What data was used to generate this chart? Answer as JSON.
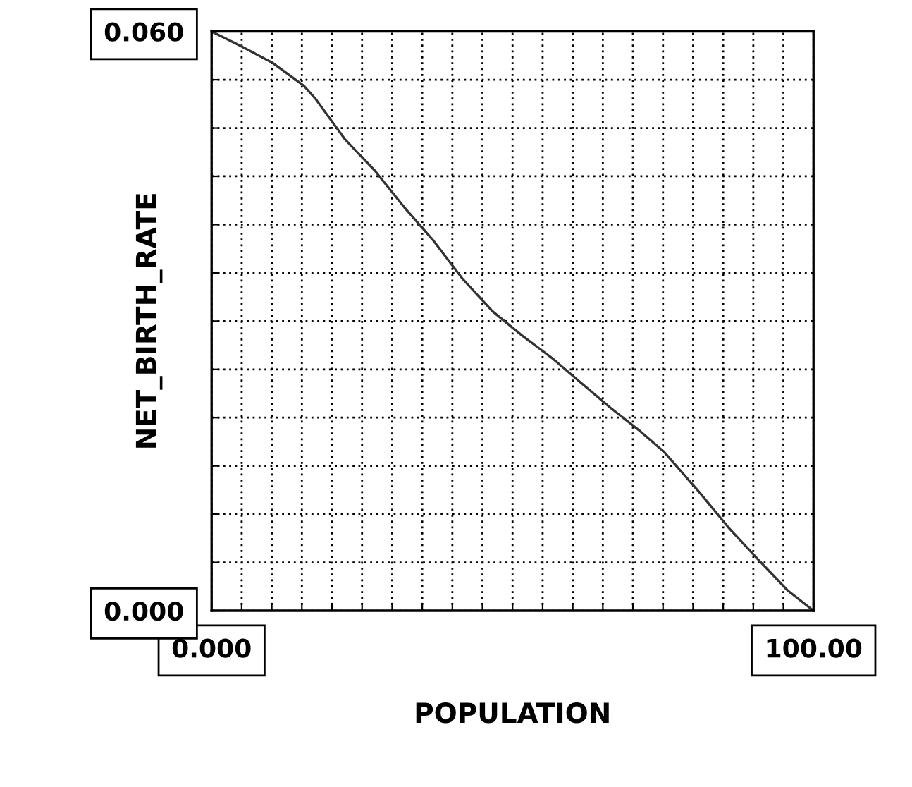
{
  "chart_data": {
    "type": "line",
    "xlabel": "POPULATION",
    "ylabel": "NET_BIRTH_RATE",
    "xlim": [
      0,
      100
    ],
    "ylim": [
      0,
      0.06
    ],
    "xticks": [
      {
        "value": 0,
        "label": "0.000"
      },
      {
        "value": 5,
        "label": null
      },
      {
        "value": 10,
        "label": null
      },
      {
        "value": 15,
        "label": null
      },
      {
        "value": 20,
        "label": null
      },
      {
        "value": 25,
        "label": null
      },
      {
        "value": 30,
        "label": null
      },
      {
        "value": 35,
        "label": null
      },
      {
        "value": 40,
        "label": null
      },
      {
        "value": 45,
        "label": null
      },
      {
        "value": 50,
        "label": null
      },
      {
        "value": 55,
        "label": null
      },
      {
        "value": 60,
        "label": null
      },
      {
        "value": 65,
        "label": null
      },
      {
        "value": 70,
        "label": null
      },
      {
        "value": 75,
        "label": null
      },
      {
        "value": 80,
        "label": null
      },
      {
        "value": 85,
        "label": null
      },
      {
        "value": 90,
        "label": null
      },
      {
        "value": 95,
        "label": null
      },
      {
        "value": 100,
        "label": "100.00"
      }
    ],
    "yticks": [
      {
        "value": 0,
        "label": "0.000"
      },
      {
        "value": 0.005,
        "label": null
      },
      {
        "value": 0.01,
        "label": null
      },
      {
        "value": 0.015,
        "label": null
      },
      {
        "value": 0.02,
        "label": null
      },
      {
        "value": 0.025,
        "label": null
      },
      {
        "value": 0.03,
        "label": null
      },
      {
        "value": 0.035,
        "label": null
      },
      {
        "value": 0.04,
        "label": null
      },
      {
        "value": 0.045,
        "label": null
      },
      {
        "value": 0.05,
        "label": null
      },
      {
        "value": 0.055,
        "label": null
      },
      {
        "value": 0.06,
        "label": "0.060"
      }
    ],
    "grid": true,
    "marker": "none",
    "line_style": "solid",
    "series": [
      {
        "color": "#333333",
        "x": [
          0,
          4.5,
          10,
          15.3,
          17.3,
          22.2,
          27.1,
          32,
          36.9,
          41.8,
          46.7,
          51.6,
          56.5,
          61.4,
          66.3,
          71.2,
          75.1,
          81,
          85.9,
          90.8,
          95.7,
          100
        ],
        "values": [
          0.06,
          0.0586,
          0.0568,
          0.0544,
          0.053,
          0.0488,
          0.0456,
          0.0418,
          0.0383,
          0.0343,
          0.031,
          0.0285,
          0.0262,
          0.0236,
          0.021,
          0.0186,
          0.0165,
          0.0123,
          0.0086,
          0.0053,
          0.0021,
          0
        ]
      }
    ]
  }
}
